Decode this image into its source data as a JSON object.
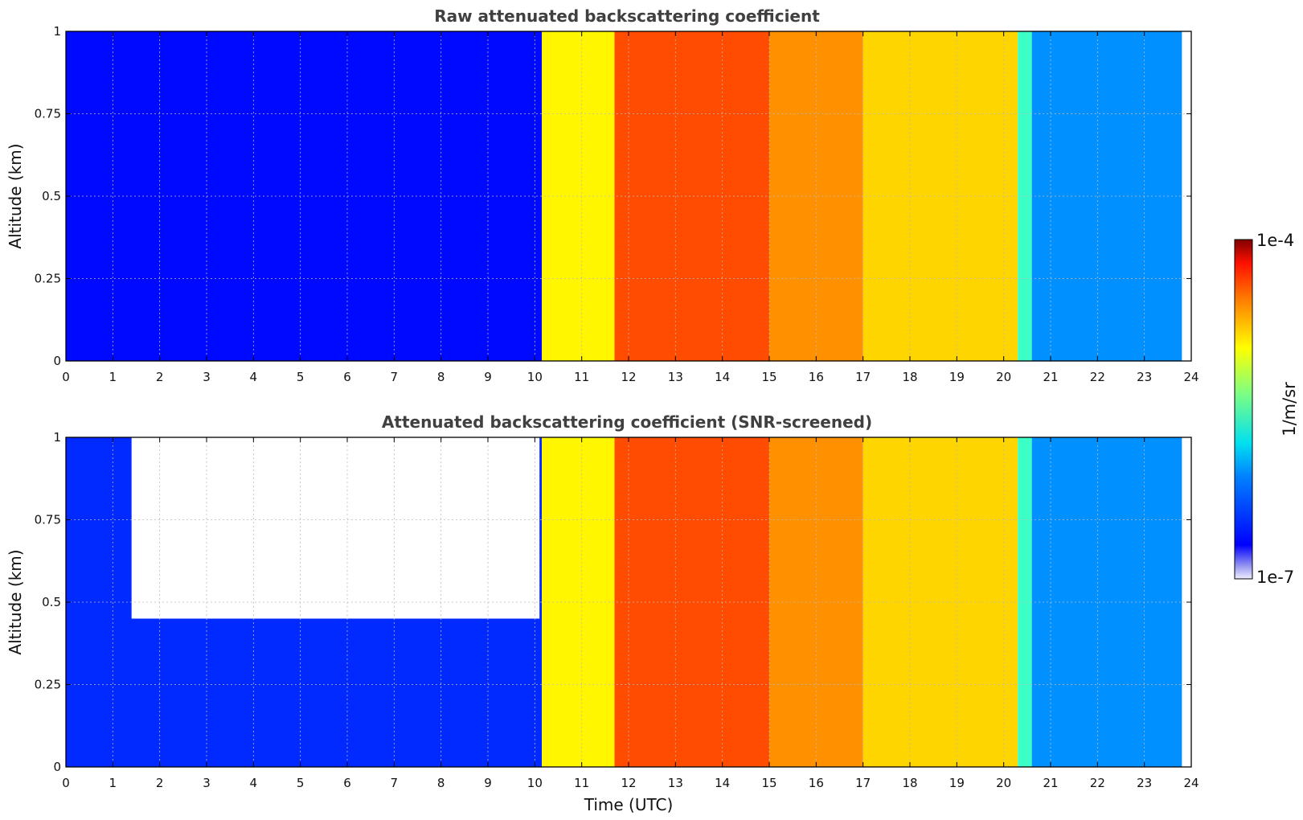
{
  "figure": {
    "xlabel": "Time (UTC)",
    "colorbar": {
      "label": "1/m/sr",
      "tick_labels": [
        "1e-4",
        "1e-7"
      ],
      "range": [
        1e-07,
        0.0001
      ],
      "scale": "log",
      "colormap": "jet"
    }
  },
  "chart_data": [
    {
      "type": "heatmap",
      "title": "Raw attenuated backscattering coefficient",
      "xlabel": "",
      "ylabel": "Altitude (km)",
      "xlim": [
        0,
        24
      ],
      "ylim": [
        0,
        1
      ],
      "xticks": [
        "0",
        "1",
        "2",
        "3",
        "4",
        "5",
        "6",
        "7",
        "8",
        "9",
        "10",
        "11",
        "12",
        "13",
        "14",
        "15",
        "16",
        "17",
        "18",
        "19",
        "20",
        "21",
        "22",
        "23",
        "24"
      ],
      "yticks": [
        "0",
        "0.25",
        "0.5",
        "0.75",
        "1"
      ],
      "grid": true,
      "data_end_time": 23.8,
      "time_periods": [
        {
          "start": 0.0,
          "end": 10.15,
          "description_level": "blue",
          "log10_beta": -6.6
        },
        {
          "start": 10.15,
          "end": 11.7,
          "description_level": "yellow",
          "log10_beta": -5.1
        },
        {
          "start": 11.7,
          "end": 15.0,
          "description_level": "orange-red",
          "log10_beta": -4.6
        },
        {
          "start": 15.0,
          "end": 17.0,
          "description_level": "orange",
          "log10_beta": -4.8
        },
        {
          "start": 17.0,
          "end": 20.3,
          "description_level": "yellow-orange",
          "log10_beta": -5.0
        },
        {
          "start": 20.3,
          "end": 20.6,
          "description_level": "cyan",
          "log10_beta": -5.7
        },
        {
          "start": 20.6,
          "end": 23.8,
          "description_level": "blue",
          "log10_beta": -6.2
        }
      ],
      "screened": false
    },
    {
      "type": "heatmap",
      "title": "Attenuated backscattering coefficient (SNR-screened)",
      "xlabel": "Time (UTC)",
      "ylabel": "Altitude (km)",
      "xlim": [
        0,
        24
      ],
      "ylim": [
        0,
        1
      ],
      "xticks": [
        "0",
        "1",
        "2",
        "3",
        "4",
        "5",
        "6",
        "7",
        "8",
        "9",
        "10",
        "11",
        "12",
        "13",
        "14",
        "15",
        "16",
        "17",
        "18",
        "19",
        "20",
        "21",
        "22",
        "23",
        "24"
      ],
      "yticks": [
        "0",
        "0.25",
        "0.5",
        "0.75",
        "1"
      ],
      "grid": true,
      "data_end_time": 23.8,
      "time_periods": [
        {
          "start": 0.0,
          "end": 10.15,
          "description_level": "blue",
          "log10_beta": -6.5
        },
        {
          "start": 10.15,
          "end": 11.7,
          "description_level": "yellow",
          "log10_beta": -5.1
        },
        {
          "start": 11.7,
          "end": 15.0,
          "description_level": "orange-red",
          "log10_beta": -4.6
        },
        {
          "start": 15.0,
          "end": 17.0,
          "description_level": "orange",
          "log10_beta": -4.8
        },
        {
          "start": 17.0,
          "end": 20.3,
          "description_level": "yellow-orange",
          "log10_beta": -5.0
        },
        {
          "start": 20.3,
          "end": 20.6,
          "description_level": "cyan",
          "log10_beta": -5.7
        },
        {
          "start": 20.6,
          "end": 23.8,
          "description_level": "blue",
          "log10_beta": -6.2
        }
      ],
      "screened": true,
      "screened_out_region": {
        "start": 1.4,
        "end": 10.1,
        "min_altitude_km": 0.45
      }
    }
  ]
}
